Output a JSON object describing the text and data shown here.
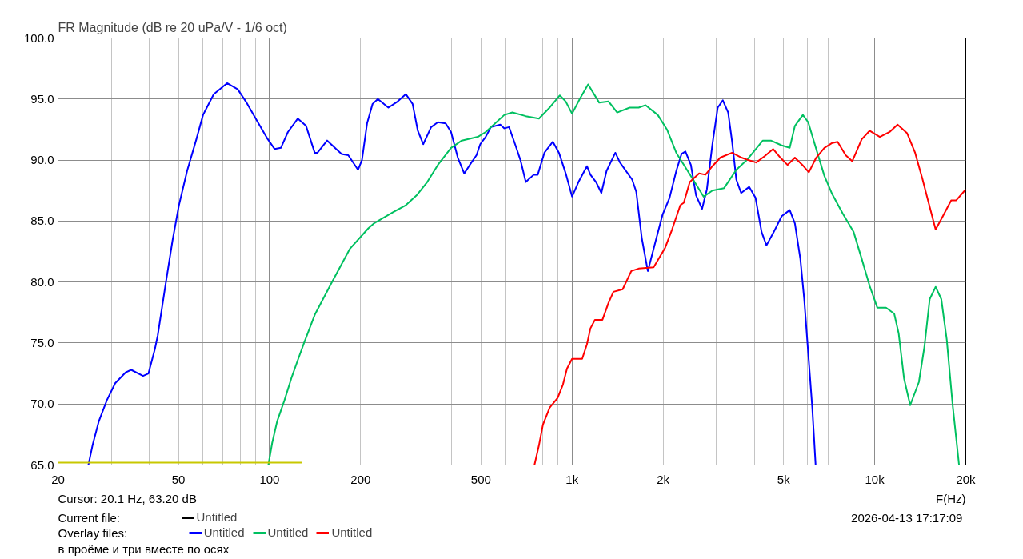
{
  "chart_data": {
    "type": "line",
    "title": "FR Magnitude (dB re 20 uPa/V - 1/6 oct)",
    "xlabel": "F(Hz)",
    "log": "x",
    "grid": true,
    "legend": "bottom left",
    "legend_title": "Overlay files:",
    "xlim": [
      20,
      20000
    ],
    "ylim": [
      65,
      100
    ],
    "xticks": [
      20,
      {
        "value": 30,
        "label": null
      },
      {
        "value": 40,
        "label": null
      },
      50,
      {
        "value": 60,
        "label": null
      },
      {
        "value": 70,
        "label": null
      },
      {
        "value": 80,
        "label": null
      },
      {
        "value": 90,
        "label": null
      },
      100,
      200,
      {
        "value": 300,
        "label": null
      },
      {
        "value": 400,
        "label": null
      },
      500,
      {
        "value": 600,
        "label": null
      },
      {
        "value": 700,
        "label": null
      },
      {
        "value": 800,
        "label": null
      },
      {
        "value": 900,
        "label": null
      },
      {
        "value": 1000,
        "label": "1k"
      },
      {
        "value": 2000,
        "label": "2k"
      },
      {
        "value": 3000,
        "label": null
      },
      {
        "value": 4000,
        "label": null
      },
      {
        "value": 5000,
        "label": "5k"
      },
      {
        "value": 6000,
        "label": null
      },
      {
        "value": 7000,
        "label": null
      },
      {
        "value": 8000,
        "label": null
      },
      {
        "value": 9000,
        "label": null
      },
      {
        "value": 10000,
        "label": "10k"
      },
      {
        "value": 20000,
        "label": "20k"
      }
    ],
    "yticks": [
      {
        "value": 65,
        "label": "65.0"
      },
      {
        "value": 70,
        "label": "70.0"
      },
      {
        "value": 75,
        "label": "75.0"
      },
      {
        "value": 80,
        "label": "80.0"
      },
      {
        "value": 85,
        "label": "85.0"
      },
      {
        "value": 90,
        "label": "90.0"
      },
      {
        "value": 95,
        "label": "95.0"
      },
      {
        "value": 100,
        "label": "100.0"
      }
    ],
    "annotations": [
      "Cursor: 20.1 Hz, 63.20 dB",
      "Current file:",
      "2026-04-13  17:17:09",
      "в проёме и три вместе по осях"
    ],
    "series": [
      {
        "name": "Untitled",
        "color": "#000000"
      },
      {
        "name": "Untitled",
        "color": "#0000ff",
        "x": [
          25.2,
          26.0,
          27.3,
          29.0,
          30.9,
          33.5,
          34.9,
          38.2,
          39.8,
          41.8,
          42.7,
          45.4,
          47.8,
          50.2,
          53.4,
          57.3,
          60.3,
          65.4,
          72.4,
          78.5,
          83.5,
          90.5,
          98.1,
          104,
          109,
          115,
          124,
          132,
          141,
          144,
          155,
          166,
          173,
          182,
          196,
          202,
          210,
          219,
          228,
          247,
          265,
          282,
          297,
          309,
          322,
          342,
          360,
          382,
          398,
          419,
          440,
          459,
          483,
          497,
          518,
          539,
          579,
          597,
          619,
          648,
          675,
          703,
          747,
          770,
          810,
          864,
          905,
          953,
          1000,
          1050,
          1120,
          1150,
          1200,
          1250,
          1300,
          1390,
          1440,
          1580,
          1630,
          1700,
          1780,
          1900,
          1990,
          2100,
          2210,
          2300,
          2370,
          2470,
          2570,
          2690,
          2790,
          2910,
          3030,
          3150,
          3280,
          3380,
          3490,
          3620,
          3850,
          4040,
          4230,
          4390,
          4640,
          4930,
          5240,
          5450,
          5680,
          5850,
          6030,
          6220,
          6380
        ],
        "values": [
          65,
          66.6,
          68.6,
          70.3,
          71.7,
          72.6,
          72.8,
          72.3,
          72.5,
          74.5,
          75.6,
          79.9,
          83.4,
          86.3,
          89.1,
          91.7,
          93.7,
          95.4,
          96.3,
          95.8,
          94.8,
          93.3,
          91.8,
          90.9,
          91.0,
          92.3,
          93.4,
          92.8,
          90.6,
          90.6,
          91.6,
          90.9,
          90.5,
          90.4,
          89.2,
          90.0,
          93.0,
          94.6,
          95.0,
          94.3,
          94.8,
          95.4,
          94.6,
          92.4,
          91.3,
          92.7,
          93.1,
          93.0,
          92.3,
          90.2,
          88.9,
          89.6,
          90.4,
          91.3,
          91.9,
          92.7,
          92.9,
          92.6,
          92.7,
          91.3,
          90.0,
          88.2,
          88.8,
          88.8,
          90.6,
          91.5,
          90.6,
          88.9,
          87.0,
          88.2,
          89.5,
          88.8,
          88.2,
          87.3,
          89.1,
          90.6,
          89.8,
          88.4,
          87.4,
          83.6,
          80.9,
          83.6,
          85.5,
          86.9,
          89.1,
          90.5,
          90.7,
          89.6,
          87.1,
          86.0,
          87.6,
          91.3,
          94.3,
          94.9,
          93.9,
          91.5,
          88.4,
          87.3,
          87.8,
          86.9,
          84.1,
          83.0,
          84.1,
          85.4,
          85.9,
          84.8,
          81.9,
          78.6,
          74.2,
          69.7,
          65
        ]
      },
      {
        "name": "Untitled",
        "color": "#00c060",
        "x": [
          99.1,
          102,
          106,
          112,
          118,
          124,
          130,
          141,
          160,
          184,
          212,
          221,
          255,
          282,
          306,
          332,
          360,
          398,
          432,
          488,
          518,
          551,
          597,
          635,
          703,
          777,
          843,
          911,
          953,
          1000,
          1060,
          1130,
          1230,
          1320,
          1410,
          1550,
          1660,
          1750,
          1920,
          2060,
          2210,
          2370,
          2570,
          2720,
          2910,
          3180,
          3490,
          3780,
          4270,
          4540,
          4930,
          5240,
          5450,
          5790,
          6030,
          6410,
          6820,
          7240,
          7850,
          8520,
          9060,
          9620,
          10200,
          10900,
          11600,
          12000,
          12500,
          13100,
          14000,
          14600,
          15200,
          15900,
          16600,
          17300,
          18100,
          19000
        ],
        "values": [
          65,
          66.8,
          68.6,
          70.3,
          72.1,
          73.6,
          75.0,
          77.3,
          79.9,
          82.7,
          84.4,
          84.8,
          85.7,
          86.3,
          87.1,
          88.2,
          89.6,
          91.0,
          91.6,
          91.9,
          92.3,
          92.9,
          93.7,
          93.9,
          93.6,
          93.4,
          94.3,
          95.3,
          94.8,
          93.8,
          95.0,
          96.2,
          94.7,
          94.8,
          93.9,
          94.3,
          94.3,
          94.5,
          93.7,
          92.5,
          90.6,
          89.4,
          88.0,
          87.0,
          87.5,
          87.7,
          89.2,
          90.0,
          91.6,
          91.6,
          91.2,
          91.0,
          92.8,
          93.7,
          93.1,
          90.9,
          88.7,
          87.2,
          85.6,
          84.1,
          81.9,
          79.7,
          77.9,
          77.9,
          77.4,
          75.8,
          72.1,
          69.9,
          71.8,
          74.7,
          78.6,
          79.6,
          78.6,
          75.3,
          69.9,
          65
        ]
      },
      {
        "name": "Untitled",
        "color": "#ff0000",
        "x": [
          751,
          777,
          801,
          843,
          896,
          933,
          962,
          1000,
          1080,
          1120,
          1150,
          1190,
          1260,
          1320,
          1370,
          1470,
          1570,
          1660,
          1860,
          2030,
          2140,
          2280,
          2340,
          2450,
          2630,
          2760,
          2910,
          3090,
          3380,
          3630,
          3820,
          4060,
          4320,
          4620,
          4880,
          5150,
          5450,
          5770,
          6060,
          6410,
          6820,
          7240,
          7540,
          8020,
          8430,
          9060,
          9620,
          10400,
          11200,
          11900,
          12800,
          13600,
          14400,
          15000,
          15900,
          16800,
          17900,
          18600,
          20000
        ],
        "values": [
          65,
          66.6,
          68.3,
          69.7,
          70.5,
          71.6,
          72.9,
          73.7,
          73.7,
          74.9,
          76.2,
          76.9,
          76.9,
          78.3,
          79.2,
          79.4,
          80.9,
          81.1,
          81.2,
          82.8,
          84.3,
          86.3,
          86.5,
          88.2,
          88.9,
          88.8,
          89.5,
          90.2,
          90.6,
          90.2,
          90.0,
          89.8,
          90.3,
          90.9,
          90.2,
          89.6,
          90.2,
          89.6,
          89.0,
          90.2,
          91.0,
          91.4,
          91.5,
          90.4,
          89.9,
          91.7,
          92.4,
          91.9,
          92.3,
          92.9,
          92.2,
          90.6,
          88.4,
          86.7,
          84.3,
          85.4,
          86.7,
          86.7,
          87.6
        ]
      },
      {
        "color": "#c8c800",
        "x": [
          20,
          128
        ],
        "values": [
          65.2,
          65.2
        ]
      }
    ]
  }
}
